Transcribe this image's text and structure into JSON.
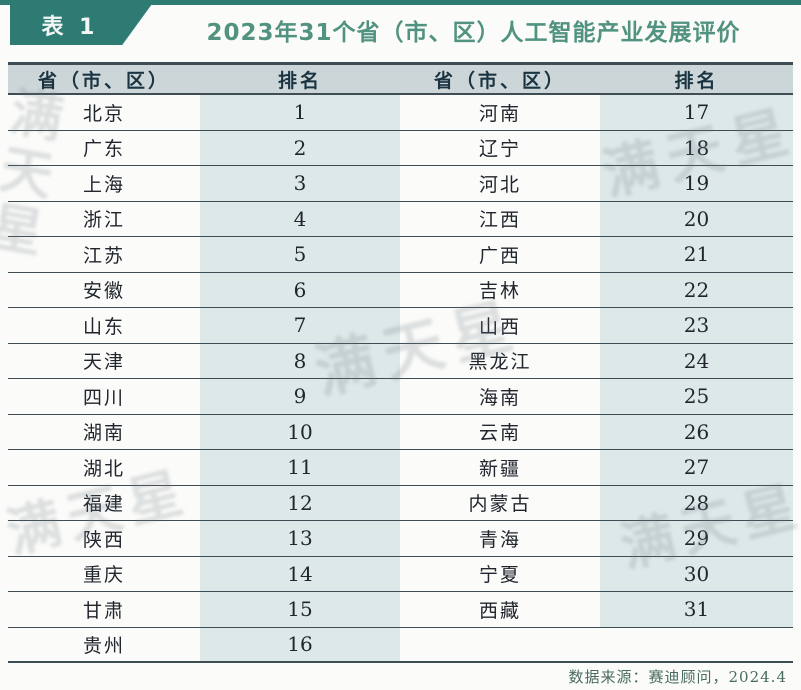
{
  "page": {
    "badge": "表 1",
    "title": "2023年31个省（市、区）人工智能产业发展评价"
  },
  "table": {
    "columns": [
      "省（市、区）",
      "排名",
      "省（市、区）",
      "排名"
    ],
    "rows": [
      {
        "p1": "北京",
        "r1": "1",
        "p2": "河南",
        "r2": "17"
      },
      {
        "p1": "广东",
        "r1": "2",
        "p2": "辽宁",
        "r2": "18"
      },
      {
        "p1": "上海",
        "r1": "3",
        "p2": "河北",
        "r2": "19"
      },
      {
        "p1": "浙江",
        "r1": "4",
        "p2": "江西",
        "r2": "20"
      },
      {
        "p1": "江苏",
        "r1": "5",
        "p2": "广西",
        "r2": "21"
      },
      {
        "p1": "安徽",
        "r1": "6",
        "p2": "吉林",
        "r2": "22"
      },
      {
        "p1": "山东",
        "r1": "7",
        "p2": "山西",
        "r2": "23"
      },
      {
        "p1": "天津",
        "r1": "8",
        "p2": "黑龙江",
        "r2": "24"
      },
      {
        "p1": "四川",
        "r1": "9",
        "p2": "海南",
        "r2": "25"
      },
      {
        "p1": "湖南",
        "r1": "10",
        "p2": "云南",
        "r2": "26"
      },
      {
        "p1": "湖北",
        "r1": "11",
        "p2": "新疆",
        "r2": "27"
      },
      {
        "p1": "福建",
        "r1": "12",
        "p2": "内蒙古",
        "r2": "28"
      },
      {
        "p1": "陕西",
        "r1": "13",
        "p2": "青海",
        "r2": "29"
      },
      {
        "p1": "重庆",
        "r1": "14",
        "p2": "宁夏",
        "r2": "30"
      },
      {
        "p1": "甘肃",
        "r1": "15",
        "p2": "西藏",
        "r2": "31"
      },
      {
        "p1": "贵州",
        "r1": "16",
        "p2": "",
        "r2": ""
      }
    ]
  },
  "footer": {
    "source": "数据来源：赛迪顾问，2024.4"
  },
  "watermark": {
    "text": "满天星"
  },
  "colors": {
    "teal": "#2e7b74",
    "title_green": "#519380",
    "header_bg": "#ccd6d9",
    "rank_column_tint": "#dde9e8",
    "border": "#3e4c53",
    "text": "#21262e",
    "footer_text": "#4a6b60",
    "watermark": "#6e7b84"
  }
}
